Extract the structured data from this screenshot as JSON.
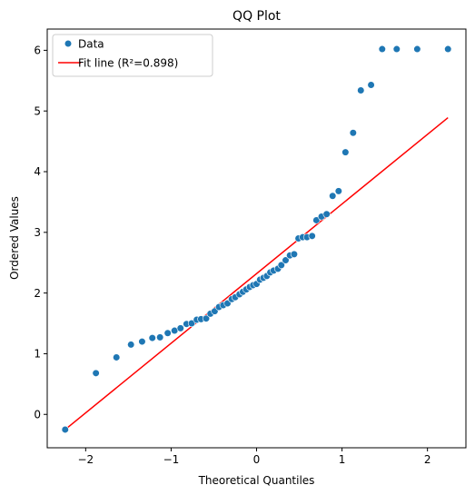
{
  "chart_data": {
    "type": "scatter",
    "title": "QQ Plot",
    "xlabel": "Theoretical Quantiles",
    "ylabel": "Ordered Values",
    "xlim": [
      -2.45,
      2.45
    ],
    "ylim": [
      -0.55,
      6.35
    ],
    "x_ticks": [
      -2,
      -1,
      0,
      1,
      2
    ],
    "x_tick_labels": [
      "−2",
      "−1",
      "0",
      "1",
      "2"
    ],
    "y_ticks": [
      0,
      1,
      2,
      3,
      4,
      5,
      6
    ],
    "y_tick_labels": [
      "0",
      "1",
      "2",
      "3",
      "4",
      "5",
      "6"
    ],
    "grid": false,
    "legend": {
      "placement": "top-left",
      "entries": [
        "Data",
        "Fit line (R²=0.898)"
      ]
    },
    "series": [
      {
        "name": "Data",
        "kind": "scatter",
        "color": "#1f77b4",
        "x": [
          -2.24,
          -1.88,
          -1.64,
          -1.47,
          -1.34,
          -1.22,
          -1.13,
          -1.04,
          -0.96,
          -0.89,
          -0.82,
          -0.76,
          -0.7,
          -0.65,
          -0.59,
          -0.54,
          -0.49,
          -0.44,
          -0.39,
          -0.34,
          -0.29,
          -0.25,
          -0.2,
          -0.16,
          -0.12,
          -0.08,
          -0.04,
          0.0,
          0.04,
          0.08,
          0.12,
          0.16,
          0.2,
          0.25,
          0.29,
          0.34,
          0.39,
          0.44,
          0.49,
          0.54,
          0.59,
          0.65,
          0.7,
          0.76,
          0.82,
          0.89,
          0.96,
          1.04,
          1.13,
          1.22,
          1.34,
          1.47,
          1.64,
          1.88,
          2.24
        ],
        "y": [
          -0.25,
          0.68,
          0.94,
          1.15,
          1.2,
          1.26,
          1.27,
          1.34,
          1.38,
          1.42,
          1.49,
          1.5,
          1.56,
          1.57,
          1.58,
          1.66,
          1.7,
          1.77,
          1.8,
          1.83,
          1.9,
          1.93,
          1.98,
          2.02,
          2.06,
          2.1,
          2.13,
          2.15,
          2.22,
          2.25,
          2.28,
          2.34,
          2.37,
          2.4,
          2.46,
          2.54,
          2.62,
          2.64,
          2.9,
          2.92,
          2.92,
          2.94,
          3.2,
          3.26,
          3.3,
          3.6,
          3.68,
          4.32,
          4.64,
          5.34,
          5.43,
          6.02,
          6.02,
          6.02,
          6.02
        ]
      },
      {
        "name": "Fit line (R²=0.898)",
        "kind": "line",
        "color": "#ff0000",
        "x": [
          -2.24,
          2.24
        ],
        "y": [
          -0.25,
          4.89
        ]
      }
    ]
  }
}
